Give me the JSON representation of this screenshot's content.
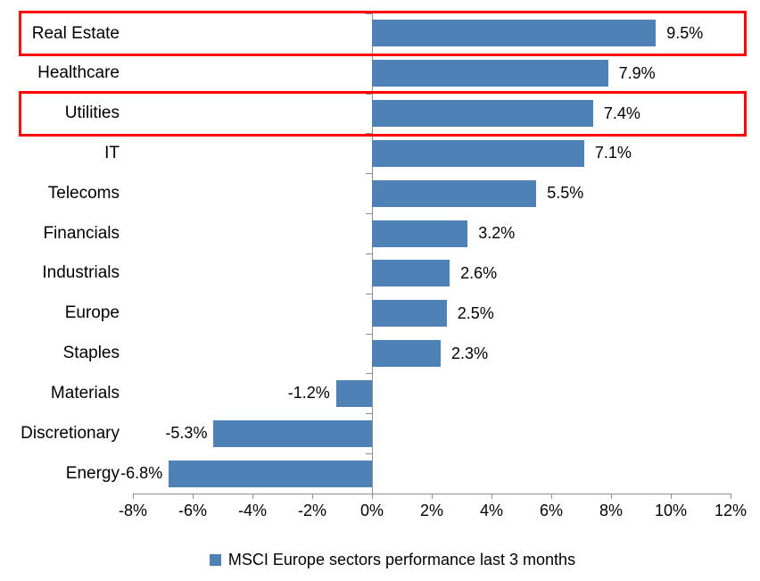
{
  "chart_data": {
    "type": "bar",
    "orientation": "horizontal",
    "categories": [
      "Real Estate",
      "Healthcare",
      "Utilities",
      "IT",
      "Telecoms",
      "Financials",
      "Industrials",
      "Europe",
      "Staples",
      "Materials",
      "Discretionary",
      "Energy"
    ],
    "values": [
      9.5,
      7.9,
      7.4,
      7.1,
      5.5,
      3.2,
      2.6,
      2.5,
      2.3,
      -1.2,
      -5.3,
      -6.8
    ],
    "data_labels": [
      "9.5%",
      "7.9%",
      "7.4%",
      "7.1%",
      "5.5%",
      "3.2%",
      "2.6%",
      "2.5%",
      "2.3%",
      "-1.2%",
      "-5.3%",
      "-6.8%"
    ],
    "x_ticks": [
      "-8%",
      "-6%",
      "-4%",
      "-2%",
      "0%",
      "2%",
      "4%",
      "6%",
      "8%",
      "10%",
      "12%"
    ],
    "x_range": [
      -8,
      12
    ],
    "grid": false,
    "legend": "MSCI Europe sectors performance last 3 months",
    "legend_position": "bottom",
    "bar_color": "#4e82b6",
    "highlight_color": "#fe0000",
    "highlighted_categories": [
      "Real Estate",
      "Utilities"
    ]
  }
}
